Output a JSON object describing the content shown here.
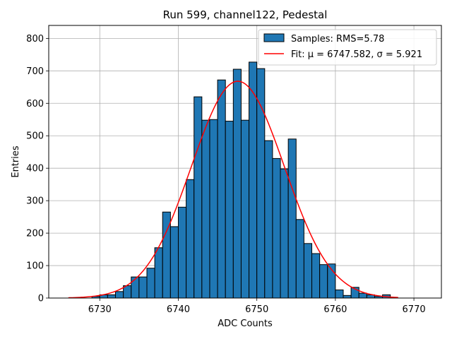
{
  "chart_data": {
    "type": "bar",
    "title": "Run 599, channel122, Pedestal",
    "xlabel": "ADC Counts",
    "ylabel": "Entries",
    "xlim": [
      6723.5,
      6773.5
    ],
    "ylim": [
      0,
      840
    ],
    "xticks": [
      6730,
      6740,
      6750,
      6760,
      6770
    ],
    "yticks": [
      0,
      100,
      200,
      300,
      400,
      500,
      600,
      700,
      800
    ],
    "grid": true,
    "legend_position": "top-right",
    "bin_width": 1,
    "histogram": {
      "name": "Samples: RMS=5.78",
      "color": "#1f77b4",
      "edge_color": "#000000",
      "bin_lefts": [
        6729,
        6730,
        6731,
        6732,
        6733,
        6734,
        6735,
        6736,
        6737,
        6738,
        6739,
        6740,
        6741,
        6742,
        6743,
        6744,
        6745,
        6746,
        6747,
        6748,
        6749,
        6750,
        6751,
        6752,
        6753,
        6754,
        6755,
        6756,
        6757,
        6758,
        6759,
        6760,
        6761,
        6762,
        6763,
        6764,
        6765,
        6766
      ],
      "values": [
        5,
        10,
        10,
        20,
        38,
        65,
        65,
        92,
        155,
        265,
        220,
        280,
        365,
        620,
        548,
        550,
        672,
        545,
        705,
        548,
        727,
        707,
        485,
        430,
        398,
        490,
        242,
        168,
        137,
        103,
        105,
        25,
        8,
        33,
        15,
        10,
        5,
        10
      ]
    },
    "fit": {
      "name": "Fit: μ = 6747.582, σ = 5.921",
      "color": "#ff0000",
      "mu": 6747.582,
      "sigma": 5.921,
      "amplitude": 668,
      "x_range": [
        6726,
        6768
      ]
    }
  }
}
